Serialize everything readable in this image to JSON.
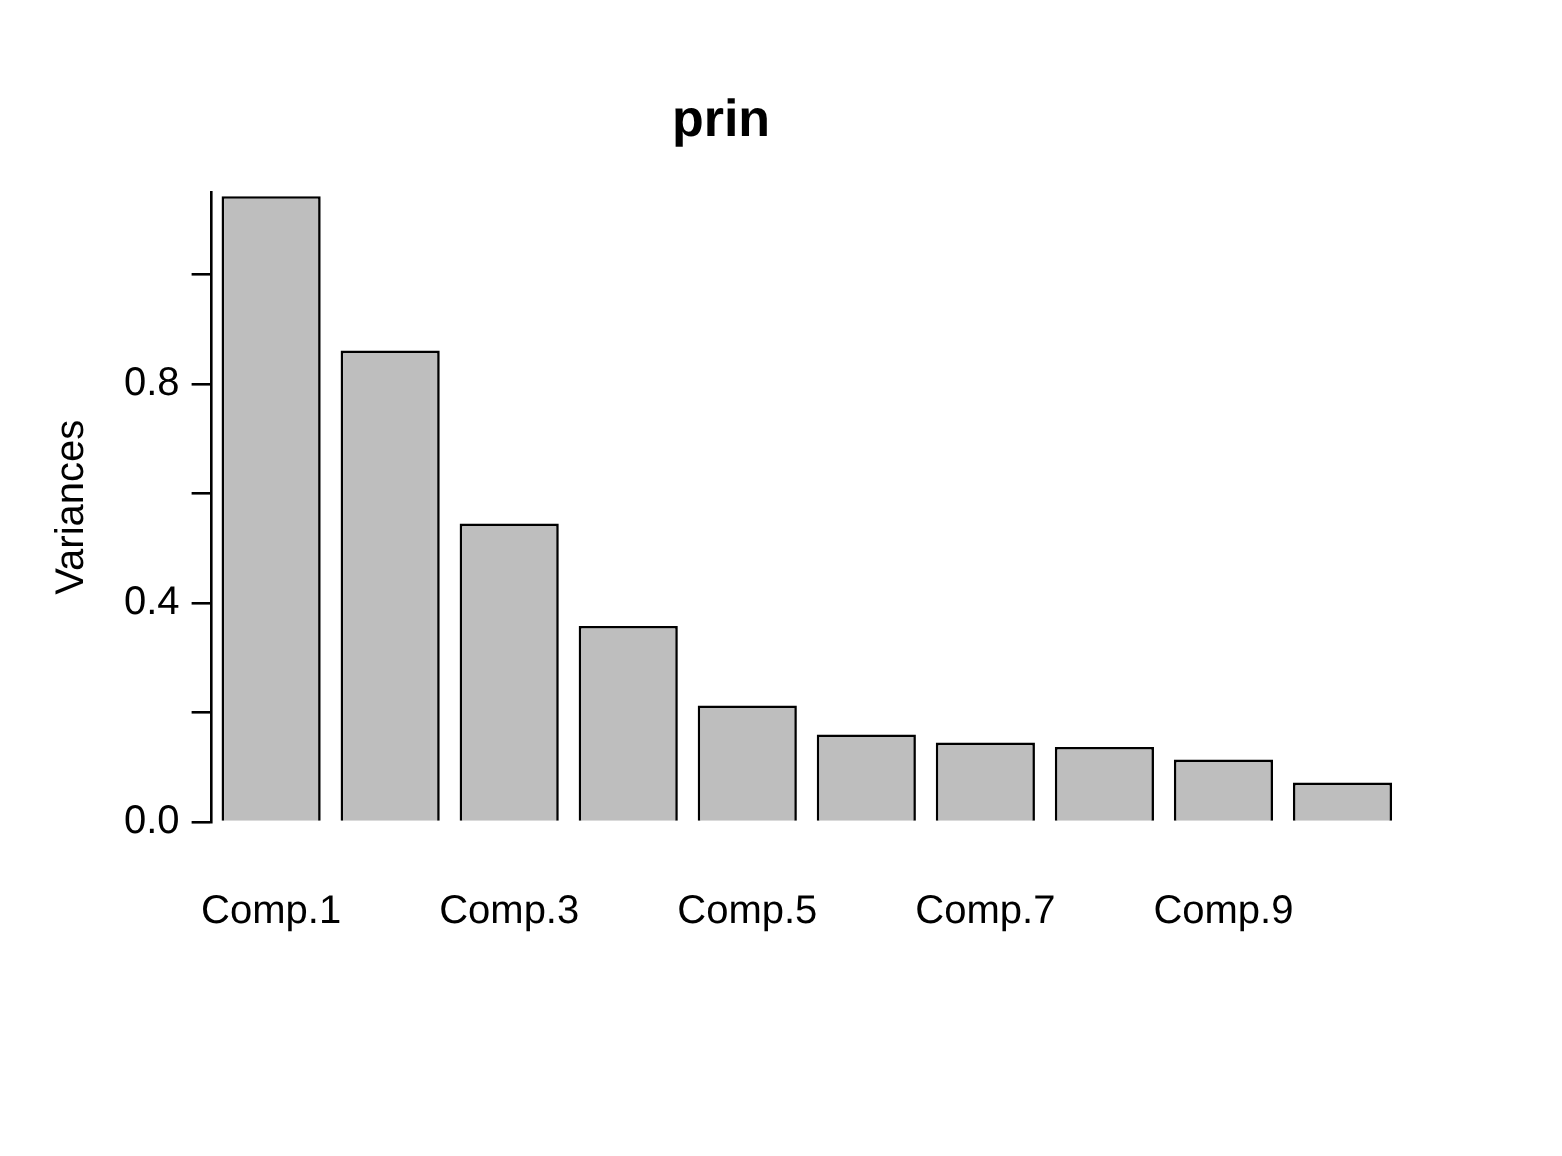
{
  "chart_data": {
    "type": "bar",
    "title": "prin",
    "ylabel": "Variances",
    "categories": [
      "Comp.1",
      null,
      "Comp.3",
      null,
      "Comp.5",
      null,
      "Comp.7",
      null,
      "Comp.9",
      null
    ],
    "values": [
      1.143,
      0.861,
      0.545,
      0.358,
      0.213,
      0.16,
      0.145,
      0.137,
      0.114,
      0.072
    ],
    "color": "#bebebe",
    "ylim": [
      0,
      1.15
    ],
    "yticks": [
      {
        "value": 0,
        "label": "0.0"
      },
      {
        "value": 0.2,
        "label": null
      },
      {
        "value": 0.4,
        "label": "0.4"
      },
      {
        "value": 0.6,
        "label": null
      },
      {
        "value": 0.8,
        "label": "0.8"
      },
      {
        "value": 1,
        "label": null
      }
    ]
  }
}
